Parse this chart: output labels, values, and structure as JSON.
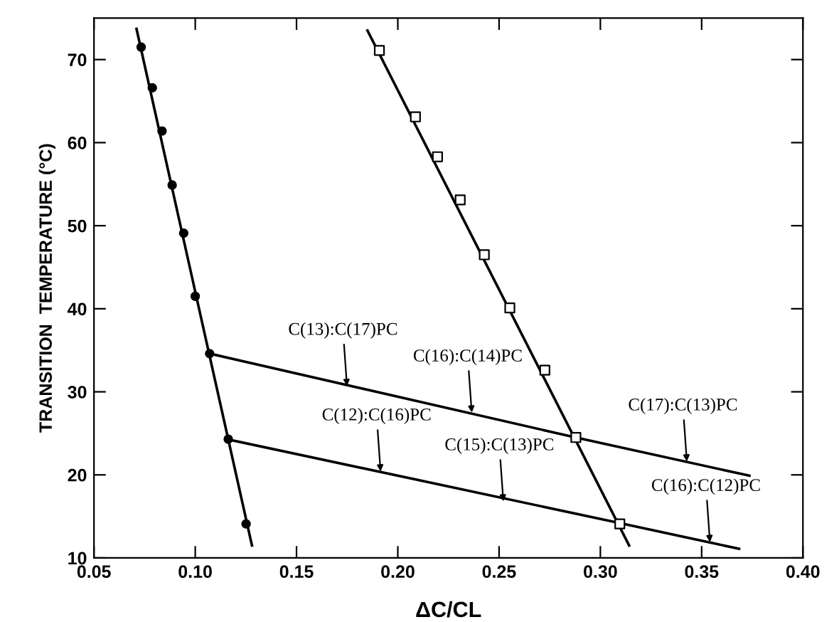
{
  "chart_data": {
    "type": "scatter",
    "xlabel": "ΔC/CL",
    "ylabel": "TRANSITION  TEMPERATURE (°C)",
    "xlim": [
      0.05,
      0.4
    ],
    "ylim": [
      10,
      75
    ],
    "xticks": [
      {
        "value": 0.05,
        "label": "0.05"
      },
      {
        "value": 0.1,
        "label": "0.10"
      },
      {
        "value": 0.15,
        "label": "0.15"
      },
      {
        "value": 0.2,
        "label": "0.20"
      },
      {
        "value": 0.25,
        "label": "0.25"
      },
      {
        "value": 0.3,
        "label": "0.30"
      },
      {
        "value": 0.35,
        "label": "0.35"
      },
      {
        "value": 0.4,
        "label": "0.40"
      }
    ],
    "yticks": [
      10,
      20,
      30,
      40,
      50,
      60,
      70
    ],
    "grid": false,
    "legend": false,
    "series": [
      {
        "marker": "circle",
        "color": "#000000",
        "x": [
          0.0733,
          0.0788,
          0.0836,
          0.0886,
          0.0943,
          0.1,
          0.1071,
          0.1163,
          0.1251
        ],
        "values": [
          71.5,
          66.6,
          61.4,
          54.9,
          49.1,
          41.5,
          34.6,
          24.3,
          14.1
        ]
      },
      {
        "marker": "square",
        "color": "#000000",
        "x": [
          0.1909,
          0.2087,
          0.2196,
          0.2308,
          0.2427,
          0.2553,
          0.2726,
          0.2879,
          0.3096
        ],
        "values": [
          71.1,
          63.1,
          58.3,
          53.1,
          46.5,
          40.1,
          32.6,
          24.5,
          14.1
        ]
      },
      {
        "type": "line",
        "color": "#000000",
        "x": [
          0.071,
          0.128
        ],
        "values": [
          73.7,
          11.5
        ]
      },
      {
        "type": "line",
        "color": "#000000",
        "x": [
          0.185,
          0.3142
        ],
        "values": [
          73.5,
          11.5
        ]
      },
      {
        "type": "line",
        "color": "#000000",
        "x": [
          0.1071,
          0.2879,
          0.3736
        ],
        "values": [
          34.6,
          24.5,
          19.9
        ]
      },
      {
        "type": "line",
        "color": "#000000",
        "x": [
          0.1155,
          0.3096,
          0.3685
        ],
        "values": [
          24.3,
          14.2,
          11.1
        ]
      }
    ],
    "annotations": [
      {
        "text": "C(13):C(17)PC",
        "x": 0.1749,
        "y": 30.7
      },
      {
        "text": "C(16):C(14)PC",
        "x": 0.2365,
        "y": 27.5
      },
      {
        "text": "C(17):C(13)PC",
        "x": 0.3427,
        "y": 21.6
      },
      {
        "text": "C(12):C(16)PC",
        "x": 0.1915,
        "y": 20.4
      },
      {
        "text": "C(15):C(13)PC",
        "x": 0.2521,
        "y": 16.8
      },
      {
        "text": "C(16):C(12)PC",
        "x": 0.3541,
        "y": 11.9
      }
    ]
  }
}
